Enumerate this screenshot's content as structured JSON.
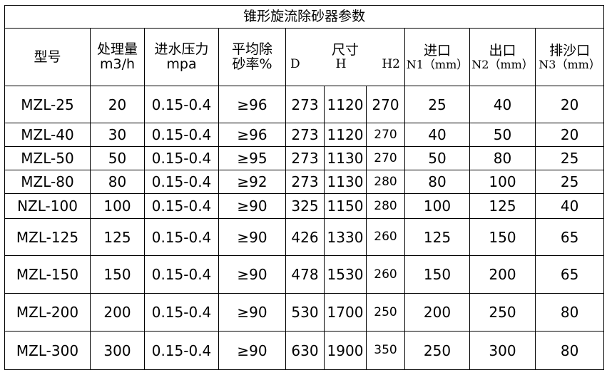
{
  "title": "锥形旋流除砂器参数",
  "headers": {
    "model": "型号",
    "capacity": "处理量",
    "capacity_unit": "m3/h",
    "pressure": "进水压力",
    "pressure_unit": "mpa",
    "removal_1": "平均除",
    "removal_2": "砂率%",
    "size": "尺寸",
    "size_d": "D",
    "size_h": "H",
    "size_h2": "H2",
    "inlet": "进口",
    "inlet_unit": "N1（mm）",
    "outlet": "出口",
    "outlet_unit": "N2（mm）",
    "sand": "排沙口",
    "sand_unit": "N3（mm）"
  },
  "rows": [
    [
      "MZL-25",
      "20",
      "0.15-0.4",
      "≥96",
      "273",
      "1120",
      "270",
      "25",
      "40",
      "20"
    ],
    [
      "MZL-40",
      "30",
      "0.15-0.4",
      "≥96",
      "273",
      "1120",
      "270",
      "40",
      "50",
      "20"
    ],
    [
      "MZL-50",
      "50",
      "0.15-0.4",
      "≥95",
      "273",
      "1130",
      "270",
      "50",
      "80",
      "25"
    ],
    [
      "MZL-80",
      "80",
      "0.15-0.4",
      "≥92",
      "273",
      "1130",
      "280",
      "80",
      "100",
      "25"
    ],
    [
      "NZL-100",
      "100",
      "0.15-0.4",
      "≥90",
      "325",
      "1150",
      "280",
      "100",
      "125",
      "40"
    ],
    [
      "MZL-125",
      "125",
      "0.15-0.4",
      "≥90",
      "426",
      "1330",
      "260",
      "125",
      "150",
      "65"
    ],
    [
      "MZL-150",
      "150",
      "0.15-0.4",
      "≥90",
      "478",
      "1530",
      "260",
      "150",
      "200",
      "65"
    ],
    [
      "MZL-200",
      "200",
      "0.15-0.4",
      "≥90",
      "530",
      "1700",
      "250",
      "200",
      "250",
      "80"
    ],
    [
      "MZL-300",
      "300",
      "0.15-0.4",
      "≥90",
      "630",
      "1900",
      "350",
      "250",
      "300",
      "80"
    ]
  ]
}
